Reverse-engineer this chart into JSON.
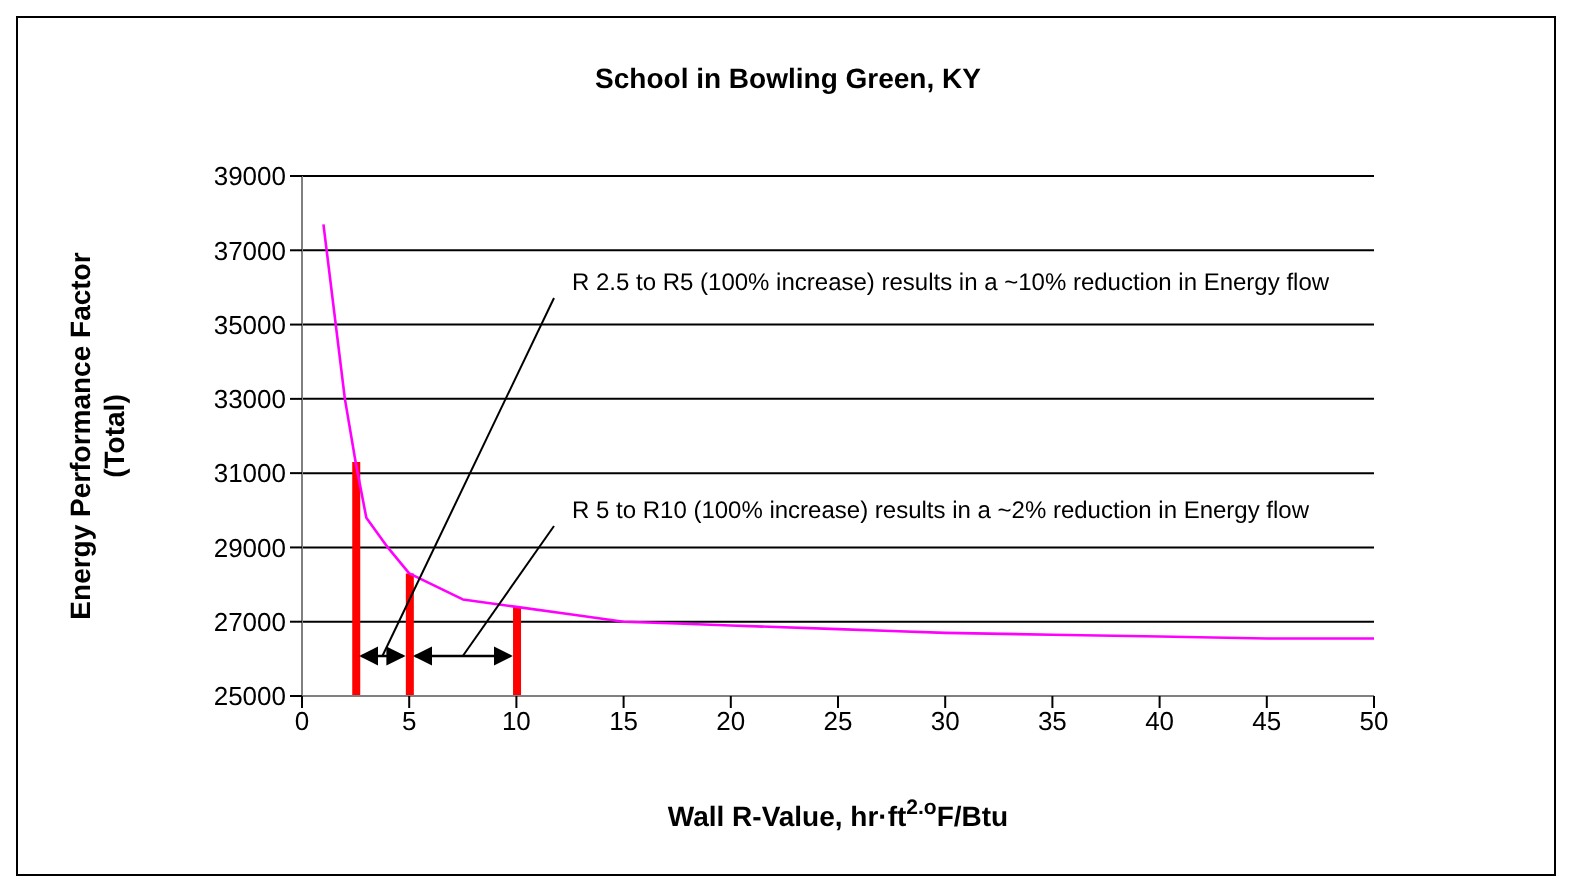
{
  "chart_data": {
    "type": "line",
    "title": "School in Bowling Green, KY",
    "xlabel": "Wall R-Value, hr·ft$^{2.o}$F/Btu",
    "ylabel": "Energy Performance Factor (Total)",
    "x": [
      1,
      2,
      2.5,
      3,
      4,
      5,
      7.5,
      10,
      12.5,
      15,
      17.5,
      20,
      25,
      27.5,
      30,
      35,
      40,
      45,
      50
    ],
    "series": [
      {
        "color": "#ff00ff",
        "values": [
          37700,
          33000,
          31300,
          29800,
          29000,
          28300,
          27600,
          27400,
          27200,
          27000,
          26950,
          26900,
          26800,
          26750,
          26700,
          26650,
          26600,
          26550,
          26550
        ]
      },
      {
        "type": "bar",
        "color": "#ff0000",
        "x": [
          2.5,
          5,
          10
        ],
        "values": [
          31300,
          28300,
          27400
        ]
      }
    ],
    "annotations": [
      "R 2.5 to R5 (100% increase) results in a ~10% reduction in Energy flow",
      "R 5 to R10 (100% increase) results in a ~2% reduction in Energy flow"
    ],
    "xlim": [
      0,
      50
    ],
    "xticks": [
      0,
      5,
      10,
      15,
      20,
      25,
      30,
      35,
      40,
      45,
      50
    ],
    "ylim": [
      25000,
      39000
    ],
    "yticks": [
      25000,
      27000,
      29000,
      31000,
      33000,
      35000,
      37000,
      39000
    ],
    "grid": "y",
    "marker": "none",
    "line_style": "solid"
  }
}
